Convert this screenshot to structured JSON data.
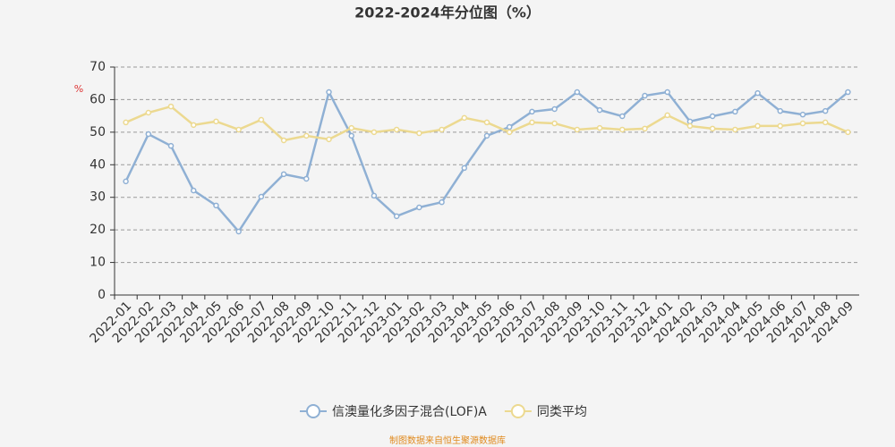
{
  "chart_data": {
    "type": "line",
    "title": "2022-2024年分位图（%）",
    "y_label": "%",
    "source": "制图数据来自恒生聚源数据库",
    "categories": [
      "2022-01",
      "2022-02",
      "2022-03",
      "2022-04",
      "2022-05",
      "2022-06",
      "2022-07",
      "2022-08",
      "2022-09",
      "2022-10",
      "2022-11",
      "2022-12",
      "2023-01",
      "2023-02",
      "2023-03",
      "2023-04",
      "2023-05",
      "2023-06",
      "2023-07",
      "2023-08",
      "2023-09",
      "2023-10",
      "2023-11",
      "2023-12",
      "2024-01",
      "2024-02",
      "2024-03",
      "2024-04",
      "2024-05",
      "2024-06",
      "2024-07",
      "2024-08",
      "2024-09"
    ],
    "series": [
      {
        "name": "信澳量化多因子混合(LOF)A",
        "color": "#8fb0d4",
        "values": [
          34.9,
          49.4,
          45.8,
          32.1,
          27.5,
          19.5,
          30.2,
          37.1,
          35.7,
          62.3,
          48.9,
          30.5,
          24.2,
          26.9,
          28.5,
          39.0,
          48.9,
          51.6,
          56.3,
          57.1,
          62.3,
          56.8,
          54.9,
          61.2,
          62.3,
          53.3,
          54.9,
          56.3,
          62.0,
          56.5,
          55.4,
          56.5,
          62.3
        ]
      },
      {
        "name": "同类平均",
        "color": "#ecd990",
        "values": [
          53.0,
          56.0,
          57.9,
          52.2,
          53.3,
          50.8,
          53.8,
          47.5,
          48.9,
          47.8,
          51.3,
          50.0,
          50.8,
          49.7,
          50.8,
          54.4,
          53.0,
          50.0,
          53.0,
          52.7,
          50.8,
          51.3,
          50.8,
          51.1,
          55.2,
          51.9,
          51.1,
          50.8,
          51.9,
          51.9,
          52.7,
          53.0,
          50.0
        ]
      }
    ],
    "ylim": [
      0,
      70
    ],
    "yticks": [
      0,
      10,
      20,
      30,
      40,
      50,
      60,
      70
    ],
    "grid": true
  }
}
